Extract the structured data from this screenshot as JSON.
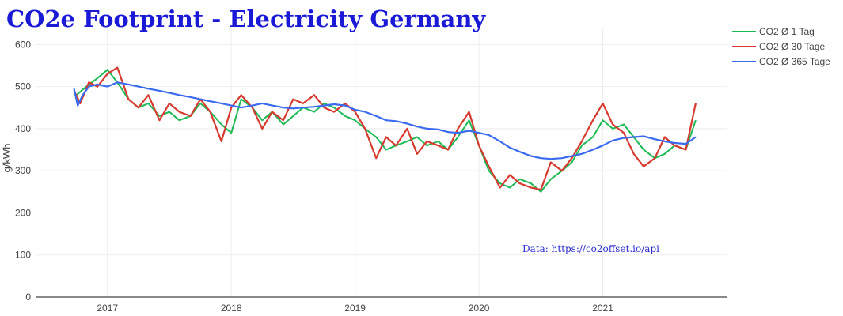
{
  "chart_data": {
    "type": "line",
    "title": "CO2e Footprint - Electricity Germany",
    "xlabel": "",
    "ylabel": "g/kWh",
    "xlim": [
      2016.42,
      2022.0
    ],
    "ylim": [
      0,
      640
    ],
    "x_ticks": [
      2017,
      2018,
      2019,
      2020,
      2021
    ],
    "x_tick_labels": [
      "2017",
      "2018",
      "2019",
      "2020",
      "2021"
    ],
    "y_ticks": [
      0,
      100,
      200,
      300,
      400,
      500,
      600
    ],
    "y_tick_labels": [
      "0",
      "100",
      "200",
      "300",
      "400",
      "500",
      "600"
    ],
    "grid": true,
    "legend_position": "top-right",
    "annotation": "Data: https://co2offset.io/api",
    "series": [
      {
        "name": "CO2 Ø 1 Tag",
        "color": "#1db954",
        "x": [
          2016.75,
          2016.83,
          2016.92,
          2017.0,
          2017.08,
          2017.17,
          2017.25,
          2017.33,
          2017.42,
          2017.5,
          2017.58,
          2017.67,
          2017.75,
          2017.83,
          2017.92,
          2018.0,
          2018.08,
          2018.17,
          2018.25,
          2018.33,
          2018.42,
          2018.5,
          2018.58,
          2018.67,
          2018.75,
          2018.83,
          2018.92,
          2019.0,
          2019.08,
          2019.17,
          2019.25,
          2019.33,
          2019.42,
          2019.5,
          2019.58,
          2019.67,
          2019.75,
          2019.83,
          2019.92,
          2020.0,
          2020.08,
          2020.17,
          2020.25,
          2020.33,
          2020.42,
          2020.5,
          2020.58,
          2020.67,
          2020.75,
          2020.83,
          2020.92,
          2021.0,
          2021.08,
          2021.17,
          2021.25,
          2021.33,
          2021.42,
          2021.5,
          2021.58,
          2021.67,
          2021.75
        ],
        "y": [
          480,
          500,
          520,
          540,
          510,
          470,
          450,
          460,
          430,
          440,
          420,
          430,
          460,
          440,
          410,
          390,
          470,
          450,
          420,
          440,
          410,
          430,
          450,
          440,
          460,
          450,
          430,
          420,
          400,
          380,
          350,
          360,
          370,
          380,
          360,
          370,
          350,
          380,
          420,
          360,
          300,
          270,
          260,
          280,
          270,
          250,
          280,
          300,
          320,
          360,
          380,
          420,
          400,
          410,
          380,
          350,
          330,
          340,
          360,
          350,
          420
        ]
      },
      {
        "name": "CO2 Ø 30 Tage",
        "color": "#d63a2f",
        "x": [
          2016.73,
          2016.78,
          2016.85,
          2016.92,
          2017.0,
          2017.08,
          2017.17,
          2017.25,
          2017.33,
          2017.42,
          2017.5,
          2017.58,
          2017.67,
          2017.75,
          2017.83,
          2017.92,
          2018.0,
          2018.08,
          2018.17,
          2018.25,
          2018.33,
          2018.42,
          2018.5,
          2018.58,
          2018.67,
          2018.75,
          2018.83,
          2018.92,
          2019.0,
          2019.08,
          2019.17,
          2019.25,
          2019.33,
          2019.42,
          2019.5,
          2019.58,
          2019.67,
          2019.75,
          2019.83,
          2019.92,
          2020.0,
          2020.08,
          2020.17,
          2020.25,
          2020.33,
          2020.42,
          2020.5,
          2020.58,
          2020.67,
          2020.75,
          2020.83,
          2020.92,
          2021.0,
          2021.08,
          2021.17,
          2021.25,
          2021.33,
          2021.42,
          2021.5,
          2021.58,
          2021.67,
          2021.75
        ],
        "y": [
          490,
          460,
          510,
          500,
          530,
          545,
          470,
          450,
          480,
          420,
          460,
          440,
          430,
          470,
          440,
          370,
          450,
          480,
          450,
          400,
          440,
          420,
          470,
          460,
          480,
          450,
          440,
          460,
          440,
          400,
          330,
          380,
          360,
          400,
          340,
          370,
          360,
          350,
          400,
          440,
          360,
          310,
          260,
          290,
          270,
          260,
          255,
          320,
          300,
          330,
          370,
          420,
          460,
          410,
          390,
          340,
          310,
          330,
          380,
          360,
          350,
          460
        ]
      },
      {
        "name": "CO2 Ø 365 Tage",
        "color": "#3b6cf0",
        "x": [
          2016.73,
          2016.76,
          2016.8,
          2016.85,
          2016.92,
          2017.0,
          2017.08,
          2017.17,
          2017.25,
          2017.33,
          2017.42,
          2017.5,
          2017.58,
          2017.67,
          2017.75,
          2017.83,
          2017.92,
          2018.0,
          2018.08,
          2018.17,
          2018.25,
          2018.33,
          2018.42,
          2018.5,
          2018.58,
          2018.67,
          2018.75,
          2018.83,
          2018.92,
          2019.0,
          2019.08,
          2019.17,
          2019.25,
          2019.33,
          2019.42,
          2019.5,
          2019.58,
          2019.67,
          2019.75,
          2019.83,
          2019.92,
          2020.0,
          2020.08,
          2020.17,
          2020.25,
          2020.33,
          2020.42,
          2020.5,
          2020.58,
          2020.67,
          2020.75,
          2020.83,
          2020.92,
          2021.0,
          2021.08,
          2021.17,
          2021.25,
          2021.33,
          2021.42,
          2021.5,
          2021.58,
          2021.67,
          2021.75
        ],
        "y": [
          495,
          455,
          480,
          500,
          505,
          500,
          510,
          505,
          500,
          495,
          490,
          485,
          480,
          475,
          470,
          465,
          460,
          455,
          450,
          455,
          460,
          455,
          450,
          448,
          450,
          452,
          455,
          458,
          455,
          445,
          440,
          430,
          420,
          418,
          412,
          405,
          400,
          398,
          392,
          390,
          395,
          390,
          385,
          370,
          355,
          345,
          335,
          330,
          328,
          330,
          335,
          340,
          350,
          360,
          372,
          378,
          380,
          382,
          375,
          370,
          366,
          364,
          380
        ]
      }
    ]
  }
}
